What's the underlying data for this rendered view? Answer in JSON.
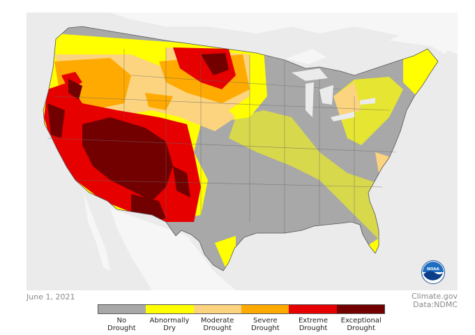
{
  "date_label": "June 1, 2021",
  "source": {
    "line1": "Climate.gov",
    "line2": "Data:NDMC"
  },
  "logo_text": "NOAA",
  "legend": [
    {
      "label": "No\nDrought",
      "color": "#a8a8a8"
    },
    {
      "label": "Abnormally\nDry",
      "color": "#ffff00"
    },
    {
      "label": "Moderate\nDrought",
      "color": "#fcd37f"
    },
    {
      "label": "Severe\nDrought",
      "color": "#ffaa00"
    },
    {
      "label": "Extreme\nDrought",
      "color": "#e60000"
    },
    {
      "label": "Exceptional\nDrought",
      "color": "#730000"
    }
  ]
}
